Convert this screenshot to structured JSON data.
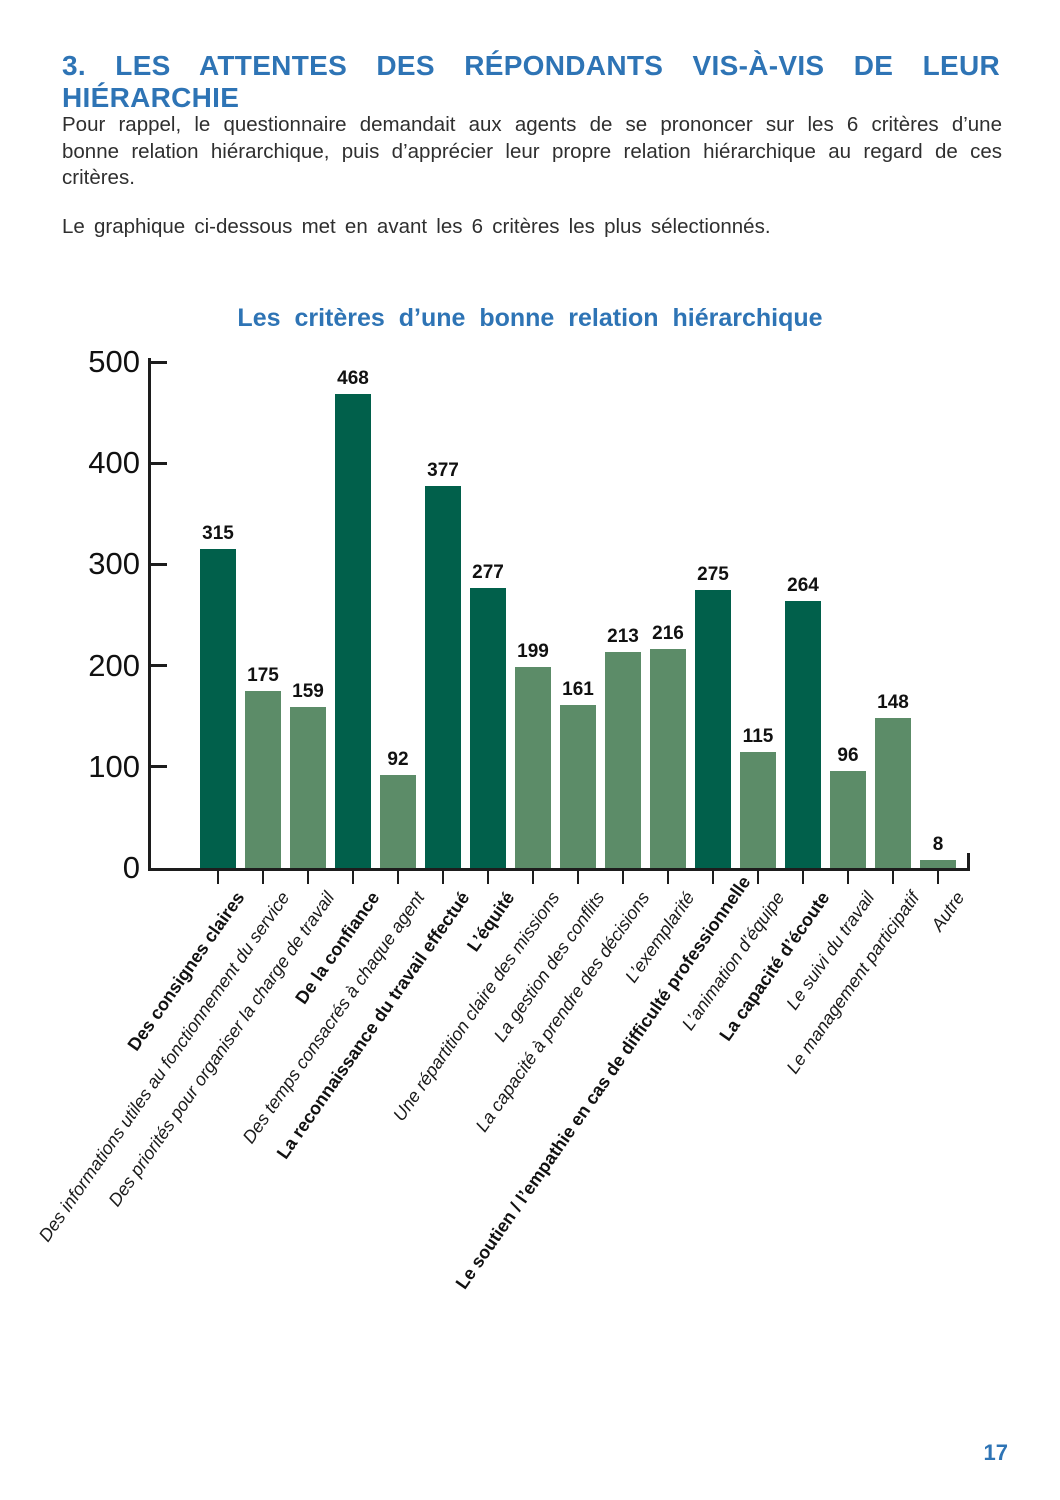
{
  "page": {
    "heading": "3. LES ATTENTES DES RÉPONDANTS VIS-À-VIS DE LEUR HIÉRARCHIE",
    "paragraphs": [
      "Pour rappel, le questionnaire demandait aux agents de se prononcer sur les 6 critères d’une bonne relation hiérarchique, puis d’apprécier leur propre relation hiérarchique au regard de ces critères.",
      "Le graphique ci-dessous met en avant les 6 critères les plus sélectionnés."
    ],
    "page_number": "17"
  },
  "colors": {
    "accent_blue": "#2E74B5",
    "body_text": "#2f2f2f",
    "axis": "#1d1d1d"
  },
  "chart_data": {
    "type": "bar",
    "title": "Les critères d’une bonne relation hiérarchique",
    "categories": [
      "Des consignes claires",
      "Des informations utiles au fonctionnement du service",
      "Des priorités pour organiser la charge de travail",
      "De la confiance",
      "Des temps consacrés à chaque agent",
      "La reconnaissance du travail effectué",
      "L’équité",
      "Une répartition claire des missions",
      "La gestion des conflits",
      "La capacité à prendre des décisions",
      "L’exemplarité",
      "Le soutien / l’empathie en cas de difficulté professionnelle",
      "L’animation d’équipe",
      "La capacité d’écoute",
      "Le suivi du travail",
      "Le management participatif",
      "Autre"
    ],
    "values": [
      315,
      175,
      159,
      468,
      92,
      377,
      277,
      199,
      161,
      213,
      216,
      275,
      115,
      264,
      96,
      148,
      8
    ],
    "highlighted_indices": [
      0,
      3,
      5,
      6,
      11,
      13
    ],
    "bar_colors": {
      "highlighted": "#01604B",
      "default": "#5C8C68"
    },
    "xlabel": "",
    "ylabel": "",
    "ylim": [
      0,
      500
    ],
    "yticks": [
      0,
      100,
      200,
      300,
      400,
      500
    ],
    "grid": false,
    "legend": false,
    "data_labels": true,
    "category_label_rotation_deg": -55
  }
}
